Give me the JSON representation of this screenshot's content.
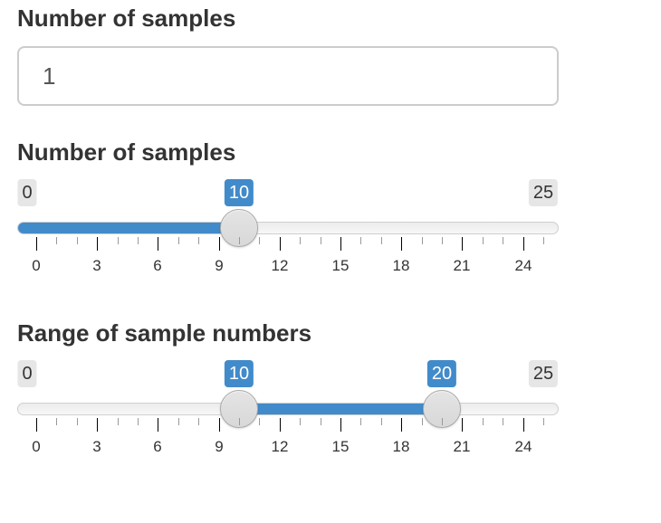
{
  "numeric_input": {
    "label": "Number of samples",
    "value": "1"
  },
  "single_slider": {
    "label": "Number of samples",
    "min": 0,
    "max": 25,
    "min_label": "0",
    "max_label": "25",
    "value": 10,
    "value_label": "10",
    "grid_labels": [
      "0",
      "3",
      "6",
      "9",
      "12",
      "15",
      "18",
      "21",
      "24"
    ]
  },
  "range_slider": {
    "label": "Range of sample numbers",
    "min": 0,
    "max": 25,
    "min_label": "0",
    "max_label": "25",
    "from": 10,
    "to": 20,
    "from_label": "10",
    "to_label": "20",
    "grid_labels": [
      "0",
      "3",
      "6",
      "9",
      "12",
      "15",
      "18",
      "21",
      "24"
    ]
  },
  "colors": {
    "accent": "#428bca",
    "edge_badge": "#e6e6e6",
    "text": "#333333"
  }
}
